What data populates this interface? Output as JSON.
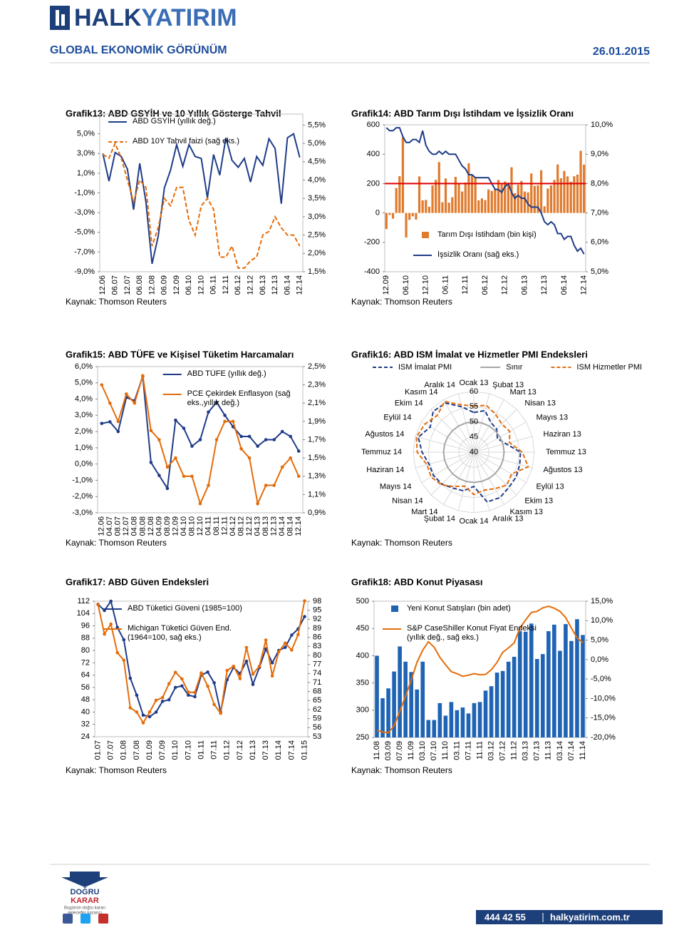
{
  "header": {
    "logo_part1": "HALK",
    "logo_part2": "YATIRIM",
    "title": "GLOBAL EKONOMİK GÖRÜNÜM",
    "date": "26.01.2015"
  },
  "footer": {
    "logo_top": "DOĞRU",
    "logo_bottom": "KARAR",
    "slogan_1": "Bugünün doğru kararı",
    "slogan_2": "geleceğin kazancı",
    "phone": "444 42 55",
    "url": "halkyatirim.com.tr"
  },
  "chart_data": [
    {
      "type": "line",
      "title": "Grafik13: ABD GSYİH ve 10 Yıllık Gösterge Tahvil",
      "source": "Kaynak: Thomson Reuters",
      "categories": [
        "12.06",
        null,
        "06.07",
        null,
        "12.07",
        null,
        "06.08",
        null,
        "12.08",
        null,
        "06.09",
        null,
        "12.09",
        null,
        "06.10",
        null,
        "12.10",
        null,
        "06.11",
        null,
        "12.11",
        null,
        "06.12",
        null,
        "12.12",
        null,
        "06.13",
        null,
        "12.13",
        null,
        "06.14",
        null,
        "12.14"
      ],
      "series": [
        {
          "name": "ABD GSYİH (yıllık değ.)",
          "color": "#1f3c88",
          "values": [
            3.0,
            0.2,
            3.1,
            2.7,
            1.4,
            -2.7,
            2.0,
            -1.9,
            -8.2,
            -5.4,
            -0.5,
            1.3,
            3.9,
            1.7,
            3.9,
            2.7,
            2.5,
            -1.5,
            2.9,
            0.8,
            4.6,
            2.3,
            1.6,
            2.5,
            0.1,
            2.7,
            1.8,
            4.5,
            3.5,
            -2.1,
            4.6,
            5.0,
            2.6
          ]
        },
        {
          "name": "ABD 10Y Tahvil faizi (sağ eks.)",
          "color": "#e46c0a",
          "dashed": true,
          "axis": "y2",
          "values": [
            4.7,
            4.6,
            5.0,
            4.6,
            4.0,
            3.4,
            4.0,
            3.8,
            2.2,
            2.7,
            3.5,
            3.3,
            3.8,
            3.8,
            2.9,
            2.5,
            3.3,
            3.5,
            3.2,
            1.9,
            1.9,
            2.2,
            1.6,
            1.6,
            1.8,
            1.9,
            2.5,
            2.6,
            3.0,
            2.7,
            2.5,
            2.5,
            2.2
          ]
        }
      ],
      "ylim": [
        -9,
        7
      ],
      "yticks": [
        {
          "value": -9,
          "label": "-9,0%"
        },
        {
          "value": -7,
          "label": "-7,0%"
        },
        {
          "value": -5,
          "label": "-5,0%"
        },
        {
          "value": -3,
          "label": "-3,0%"
        },
        {
          "value": -1,
          "label": "-1,0%"
        },
        {
          "value": 1,
          "label": "1,0%"
        },
        {
          "value": 3,
          "label": "3,0%"
        },
        {
          "value": 5,
          "label": "5,0%"
        }
      ],
      "y2lim": [
        1.5,
        5.8
      ],
      "y2ticks": [
        {
          "value": 1.5,
          "label": "1,5%"
        },
        {
          "value": 2,
          "label": "2,0%"
        },
        {
          "value": 2.5,
          "label": "2,5%"
        },
        {
          "value": 3,
          "label": "3,0%"
        },
        {
          "value": 3.5,
          "label": "3,5%"
        },
        {
          "value": 4,
          "label": "4,0%"
        },
        {
          "value": 4.5,
          "label": "4,5%"
        },
        {
          "value": 5,
          "label": "5,0%"
        },
        {
          "value": 5.5,
          "label": "5,5%"
        }
      ],
      "legend": "top-left"
    },
    {
      "type": "combo",
      "title": "Grafik14: ABD Tarım Dışı İstihdam ve İşsizlik Oranı",
      "source": "Kaynak: Thomson Reuters",
      "categories": [
        "12.09",
        null,
        null,
        null,
        null,
        null,
        "06.10",
        null,
        null,
        null,
        null,
        null,
        "12.10",
        null,
        null,
        null,
        null,
        null,
        "06.11",
        null,
        null,
        null,
        null,
        null,
        "12.11",
        null,
        null,
        null,
        null,
        null,
        "06.12",
        null,
        null,
        null,
        null,
        null,
        "12.12",
        null,
        null,
        null,
        null,
        null,
        "06.13",
        null,
        null,
        null,
        null,
        null,
        "12.13",
        null,
        null,
        null,
        null,
        null,
        "06.14",
        null,
        null,
        null,
        null,
        null,
        "12.14"
      ],
      "series": [
        {
          "name": "Tarım Dışı İstihdam (bin kişi)",
          "type": "bar",
          "color": "#e07b2e",
          "values": [
            -109,
            -13,
            -39,
            170,
            251,
            516,
            -167,
            -47,
            -23,
            -45,
            249,
            86,
            89,
            42,
            188,
            225,
            346,
            73,
            235,
            70,
            107,
            246,
            202,
            146,
            207,
            338,
            257,
            239,
            86,
            99,
            88,
            160,
            150,
            161,
            225,
            203,
            214,
            190,
            311,
            135,
            192,
            218,
            146,
            140,
            269,
            185,
            189,
            291,
            45,
            166,
            188,
            225,
            330,
            236,
            286,
            249,
            213,
            250,
            261,
            423,
            329
          ]
        },
        {
          "name": "İşsizlik Oranı (sağ eks.)",
          "color": "#1f3c88",
          "axis": "y2",
          "values": [
            9.9,
            9.8,
            9.8,
            9.9,
            9.9,
            9.6,
            9.4,
            9.4,
            9.5,
            9.5,
            9.4,
            9.8,
            9.3,
            9.1,
            9.0,
            9.0,
            9.1,
            9.0,
            9.1,
            9.0,
            9.0,
            9.0,
            8.8,
            8.6,
            8.5,
            8.3,
            8.3,
            8.2,
            8.2,
            8.2,
            8.2,
            8.2,
            8.0,
            7.8,
            7.8,
            7.7,
            7.9,
            8.0,
            7.7,
            7.5,
            7.6,
            7.5,
            7.5,
            7.3,
            7.2,
            7.2,
            7.2,
            7.0,
            6.7,
            6.6,
            6.7,
            6.6,
            6.3,
            6.3,
            6.1,
            6.2,
            6.2,
            5.9,
            5.7,
            5.8,
            5.6
          ]
        }
      ],
      "reference_line": {
        "value": 200,
        "color": "#e00000"
      },
      "ylim": [
        -400,
        600
      ],
      "yticks": [
        -400,
        -200,
        0,
        200,
        400,
        600
      ],
      "y2lim": [
        5,
        10
      ],
      "y2ticks": [
        {
          "value": 5,
          "label": "5,0%"
        },
        {
          "value": 6,
          "label": "6,0%"
        },
        {
          "value": 7,
          "label": "7,0%"
        },
        {
          "value": 8,
          "label": "8,0%"
        },
        {
          "value": 9,
          "label": "9,0%"
        },
        {
          "value": 10,
          "label": "10,0%"
        }
      ],
      "legend": "bottom-center"
    },
    {
      "type": "line",
      "title": "Grafik15: ABD TÜFE ve Kişisel Tüketim Harcamaları",
      "source": "Kaynak: Thomson Reuters",
      "categories": [
        "12.06",
        "04.07",
        "08.07",
        "12.07",
        "04.08",
        "08.08",
        "12.08",
        "04.09",
        "08.09",
        "12.09",
        "04.10",
        "08.10",
        "12.10",
        "04.11",
        "08.11",
        "12.11",
        "04.12",
        "08.12",
        "12.12",
        "04.13",
        "08.13",
        "12.13",
        "04.14",
        "08.14",
        "12.14"
      ],
      "series": [
        {
          "name": "ABD  TÜFE (yıllık değ.)",
          "color": "#1f3c88",
          "markers": true,
          "values": [
            2.5,
            2.6,
            2.0,
            4.1,
            3.9,
            5.4,
            0.1,
            -0.7,
            -1.5,
            2.7,
            2.2,
            1.1,
            1.5,
            3.2,
            3.8,
            3.0,
            2.3,
            1.7,
            1.7,
            1.1,
            1.5,
            1.5,
            2.0,
            1.7,
            0.8
          ]
        },
        {
          "name": "PCE Çekirdek Enflasyon (sağ eks.,yıllık değ.)",
          "color": "#e46c0a",
          "markers": true,
          "axis": "y2",
          "values": [
            2.3,
            2.1,
            1.9,
            2.2,
            2.1,
            2.4,
            1.8,
            1.7,
            1.4,
            1.5,
            1.3,
            1.3,
            1.0,
            1.2,
            1.7,
            1.9,
            1.9,
            1.6,
            1.5,
            1.0,
            1.2,
            1.2,
            1.4,
            1.5,
            1.3
          ]
        }
      ],
      "ylim": [
        -3,
        6
      ],
      "yticks": [
        {
          "value": -3,
          "label": "-3,0%"
        },
        {
          "value": -2,
          "label": "-2,0%"
        },
        {
          "value": -1,
          "label": "-1,0%"
        },
        {
          "value": 0,
          "label": "0,0%"
        },
        {
          "value": 1,
          "label": "1,0%"
        },
        {
          "value": 2,
          "label": "2,0%"
        },
        {
          "value": 3,
          "label": "3,0%"
        },
        {
          "value": 4,
          "label": "4,0%"
        },
        {
          "value": 5,
          "label": "5,0%"
        },
        {
          "value": 6,
          "label": "6,0%"
        }
      ],
      "y2lim": [
        0.9,
        2.5
      ],
      "y2ticks": [
        {
          "value": 0.9,
          "label": "0,9%"
        },
        {
          "value": 1.1,
          "label": "1,1%"
        },
        {
          "value": 1.3,
          "label": "1,3%"
        },
        {
          "value": 1.5,
          "label": "1,5%"
        },
        {
          "value": 1.7,
          "label": "1,7%"
        },
        {
          "value": 1.9,
          "label": "1,9%"
        },
        {
          "value": 2.1,
          "label": "2,1%"
        },
        {
          "value": 2.3,
          "label": "2,3%"
        },
        {
          "value": 2.5,
          "label": "2,5%"
        }
      ],
      "legend": "top-center"
    },
    {
      "type": "radar",
      "title": "Grafik16: ABD ISM İmalat ve Hizmetler PMI Endeksleri",
      "source": "Kaynak: Thomson Reuters",
      "categories": [
        "Ocak 13",
        "Şubat 13",
        "Mart 13",
        "Nisan 13",
        "Mayıs 13",
        "Haziran 13",
        "Temmuz 13",
        "Ağustos 13",
        "Eylül 13",
        "Ekim 13",
        "Kasım 13",
        "Aralık 13",
        "Ocak 14",
        "Şubat 14",
        "Mart 14",
        "Nisan 14",
        "Mayıs 14",
        "Haziran 14",
        "Temmuz 14",
        "Ağustos 14",
        "Eylül 14",
        "Ekim 14",
        "Kasım 14",
        "Aralık 14"
      ],
      "series": [
        {
          "name": "ISM İmalat PMI",
          "color": "#1f3c88",
          "dashed": true,
          "values": [
            53.1,
            54.2,
            51.3,
            50.7,
            49.0,
            50.9,
            55.4,
            55.7,
            56.2,
            56.4,
            57.3,
            57.0,
            51.3,
            53.2,
            53.7,
            54.9,
            55.4,
            55.3,
            57.1,
            59.0,
            56.6,
            59.0,
            58.7,
            55.5
          ]
        },
        {
          "name": "Sınır",
          "color": "#a6a6a6",
          "values": [
            50,
            50,
            50,
            50,
            50,
            50,
            50,
            50,
            50,
            50,
            50,
            50,
            50,
            50,
            50,
            50,
            50,
            50,
            50,
            50,
            50,
            50,
            50,
            50
          ]
        },
        {
          "name": "ISM Hizmetler PMI",
          "color": "#e46c0a",
          "dashed": true,
          "values": [
            55.2,
            56.0,
            54.4,
            53.1,
            53.7,
            52.2,
            56.0,
            58.6,
            54.4,
            55.4,
            53.9,
            53.0,
            54.0,
            51.6,
            53.1,
            55.2,
            56.3,
            56.0,
            58.7,
            59.6,
            58.6,
            57.1,
            59.3,
            56.2
          ]
        }
      ],
      "rlim": [
        40,
        60
      ],
      "rticks": [
        40,
        45,
        50,
        55,
        60
      ],
      "legend": "top"
    },
    {
      "type": "line",
      "title": "Grafik17: ABD Güven Endeksleri",
      "source": "Kaynak: Thomson Reuters",
      "categories": [
        "01.07",
        null,
        "07.07",
        null,
        "01.08",
        null,
        "07.08",
        null,
        "01.09",
        null,
        "07.09",
        null,
        "01.10",
        null,
        "07.10",
        null,
        "01.11",
        null,
        "07.11",
        null,
        "01.12",
        null,
        "07.12",
        null,
        "01.13",
        null,
        "07.13",
        null,
        "01.14",
        null,
        "07.14",
        null,
        "01.15"
      ],
      "series": [
        {
          "name": "ABD Tüketici Güveni (1985=100)",
          "color": "#1f3c88",
          "markers": true,
          "values": [
            110,
            106,
            112,
            95,
            87,
            62,
            51,
            38,
            37,
            40,
            47,
            48,
            56,
            57,
            51,
            50,
            64,
            66,
            59,
            40,
            61,
            69,
            65,
            73,
            58,
            69,
            81,
            72,
            80,
            82,
            90,
            94,
            102
          ]
        },
        {
          "name": "Michigan Tüketici Güven End.(1964=100, sağ eks.)",
          "color": "#e46c0a",
          "markers": true,
          "axis": "y2",
          "values": [
            96.9,
            87.1,
            90.4,
            80.9,
            78.4,
            62.6,
            61.2,
            57.6,
            61.2,
            65.1,
            66.0,
            70.6,
            74.4,
            72.2,
            67.8,
            67.7,
            74.2,
            69.8,
            63.7,
            60.8,
            75.0,
            76.4,
            72.3,
            82.6,
            73.8,
            76.4,
            85.1,
            73.2,
            81.2,
            84.1,
            81.8,
            86.9,
            98.1
          ]
        }
      ],
      "ylim": [
        24,
        112
      ],
      "yticks": [
        24,
        32,
        40,
        48,
        56,
        64,
        72,
        80,
        88,
        96,
        104,
        112
      ],
      "y2lim": [
        53,
        98
      ],
      "y2ticks": [
        53,
        56,
        59,
        62,
        65,
        68,
        71,
        74,
        77,
        80,
        83,
        86,
        89,
        92,
        95,
        98
      ],
      "legend": "top-left"
    },
    {
      "type": "combo",
      "title": "Grafik18: ABD Konut Piyasası",
      "source": "Kaynak: Thomson Reuters",
      "categories": [
        "11.08",
        null,
        "03.09",
        null,
        "07.09",
        null,
        "11.09",
        null,
        "03.10",
        null,
        "07.10",
        null,
        "11.10",
        null,
        "03.11",
        null,
        "07.11",
        null,
        "11.11",
        null,
        "03.12",
        null,
        "07.12",
        null,
        "11.12",
        null,
        "03.13",
        null,
        "07.13",
        null,
        "11.13",
        null,
        "03.14",
        null,
        "07.14",
        null,
        "11.14"
      ],
      "series": [
        {
          "name": "Yeni Konut Satışları (bin adet)",
          "type": "bar",
          "color": "#1f64b4",
          "values": [
            400,
            322,
            340,
            371,
            417,
            389,
            370,
            338,
            389,
            282,
            282,
            313,
            290,
            315,
            300,
            305,
            294,
            313,
            315,
            336,
            344,
            369,
            372,
            389,
            398,
            445,
            444,
            459,
            394,
            403,
            445,
            457,
            409,
            458,
            427,
            467,
            438
          ]
        },
        {
          "name": "S&P CaseShiller Konut Fiyat Endeksi (yıllık değ., sağ eks.)",
          "color": "#e46c0a",
          "axis": "y2",
          "values": [
            -18.2,
            -18.6,
            -18.8,
            -17.0,
            -13.3,
            -9.4,
            -5.3,
            -0.7,
            2.4,
            4.6,
            3.2,
            0.6,
            -1.3,
            -3.1,
            -3.6,
            -4.3,
            -4.0,
            -3.6,
            -3.9,
            -3.8,
            -2.6,
            -0.7,
            1.9,
            3.0,
            4.3,
            8.1,
            10.2,
            12.1,
            12.4,
            13.3,
            13.7,
            13.2,
            12.4,
            10.8,
            8.1,
            5.6,
            4.3
          ]
        }
      ],
      "ylim": [
        250,
        500
      ],
      "yticks": [
        250,
        300,
        350,
        400,
        450,
        500
      ],
      "y2lim": [
        -20,
        15
      ],
      "y2ticks": [
        {
          "value": -20,
          "label": "-20,0%"
        },
        {
          "value": -15,
          "label": "-15,0%"
        },
        {
          "value": -10,
          "label": "-10,0%"
        },
        {
          "value": -5,
          "label": "-5,0%"
        },
        {
          "value": 0,
          "label": "0,0%"
        },
        {
          "value": 5,
          "label": "5,0%"
        },
        {
          "value": 10,
          "label": "10,0%"
        },
        {
          "value": 15,
          "label": "15,0%"
        }
      ],
      "legend": "top-left"
    }
  ]
}
